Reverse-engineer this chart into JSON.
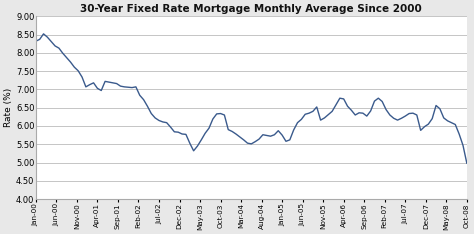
{
  "title": "30-Year Fixed Rate Mortgage Monthly Average Since 2000",
  "ylabel": "Rate (%)",
  "line_color": "#3a5a8c",
  "background_color": "#e8e8e8",
  "plot_bg_color": "#ffffff",
  "ylim": [
    4.0,
    9.0
  ],
  "yticks": [
    4.0,
    4.5,
    5.0,
    5.5,
    6.0,
    6.5,
    7.0,
    7.5,
    8.0,
    8.5,
    9.0
  ],
  "xtick_labels": [
    "Jan-00",
    "Jun-00",
    "Nov-00",
    "Apr-01",
    "Sep-01",
    "Feb-02",
    "Jul-02",
    "Dec-02",
    "May-03",
    "Oct-03",
    "Mar-04",
    "Aug-04",
    "Jan-05",
    "Jun-05",
    "Nov-05",
    "Apr-06",
    "Sep-06",
    "Feb-07",
    "Jul-07",
    "Dec-07",
    "May-08",
    "Oct-08"
  ],
  "values": [
    8.32,
    8.37,
    8.52,
    8.43,
    8.31,
    8.19,
    8.13,
    7.99,
    7.87,
    7.75,
    7.61,
    7.51,
    7.34,
    7.07,
    7.13,
    7.18,
    7.03,
    6.97,
    7.22,
    7.2,
    7.18,
    7.16,
    7.09,
    7.07,
    7.06,
    7.05,
    7.07,
    6.84,
    6.72,
    6.54,
    6.34,
    6.22,
    6.15,
    6.11,
    6.09,
    5.97,
    5.84,
    5.83,
    5.78,
    5.77,
    5.53,
    5.32,
    5.45,
    5.62,
    5.8,
    5.94,
    6.19,
    6.33,
    6.34,
    6.3,
    5.9,
    5.85,
    5.78,
    5.7,
    5.62,
    5.53,
    5.51,
    5.57,
    5.64,
    5.76,
    5.74,
    5.72,
    5.76,
    5.87,
    5.75,
    5.58,
    5.62,
    5.89,
    6.09,
    6.18,
    6.32,
    6.35,
    6.4,
    6.52,
    6.16,
    6.22,
    6.31,
    6.4,
    6.58,
    6.76,
    6.74,
    6.54,
    6.43,
    6.3,
    6.36,
    6.35,
    6.27,
    6.41,
    6.68,
    6.76,
    6.67,
    6.45,
    6.3,
    6.21,
    6.16,
    6.21,
    6.27,
    6.34,
    6.35,
    6.3,
    5.88,
    5.98,
    6.05,
    6.2,
    6.56,
    6.47,
    6.22,
    6.14,
    6.09,
    6.04,
    5.78,
    5.47,
    4.98
  ]
}
